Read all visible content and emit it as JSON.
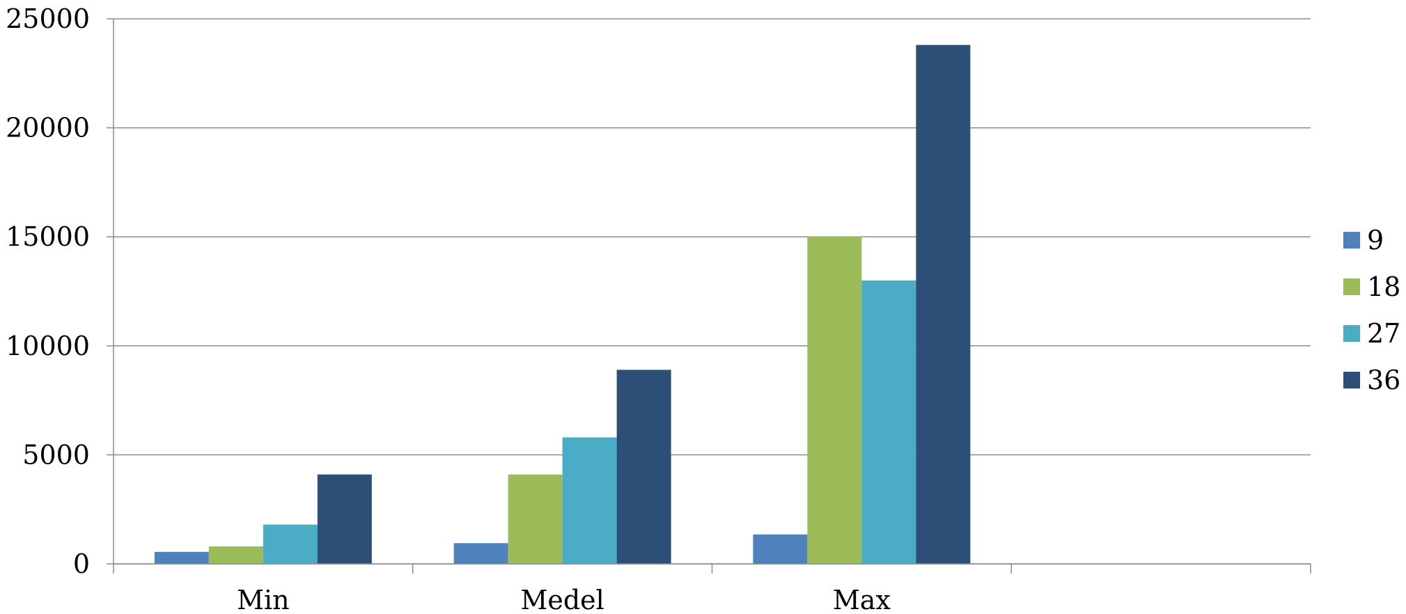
{
  "chart_data": {
    "type": "bar",
    "categories": [
      "Min",
      "Medel",
      "Max",
      ""
    ],
    "series": [
      {
        "name": "9",
        "values": [
          550,
          950,
          1350,
          null
        ],
        "color": "#4F81BD"
      },
      {
        "name": "18",
        "values": [
          800,
          4100,
          15000,
          null
        ],
        "color": "#9BBB59"
      },
      {
        "name": "27",
        "values": [
          1800,
          5800,
          13000,
          null
        ],
        "color": "#4BACC6"
      },
      {
        "name": "36",
        "values": [
          4100,
          8900,
          23800,
          null
        ],
        "color": "#2C4F78"
      }
    ],
    "title": "",
    "xlabel": "",
    "ylabel": "",
    "ylim": [
      0,
      25000
    ],
    "yticks": [
      "0",
      "5000",
      "10000",
      "15000",
      "20000",
      "25000"
    ],
    "grid": true,
    "legend_position": "right"
  }
}
